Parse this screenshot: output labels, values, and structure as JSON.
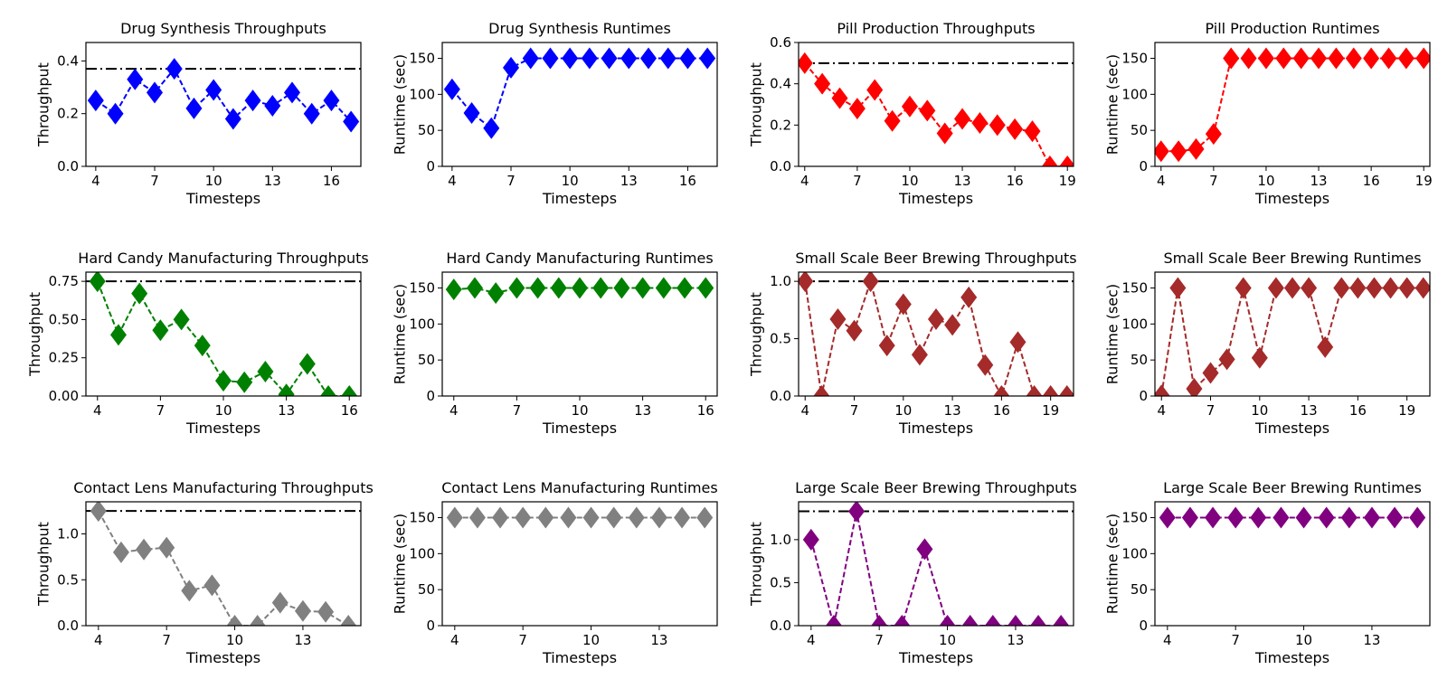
{
  "chart_data": [
    {
      "type": "line",
      "title": "Drug Synthesis Throughputs",
      "xlabel": "Timesteps",
      "ylabel": "Throughput",
      "color": "#0000ff",
      "x": [
        4,
        5,
        6,
        7,
        8,
        9,
        10,
        11,
        12,
        13,
        14,
        15,
        16,
        17
      ],
      "values": [
        0.25,
        0.2,
        0.33,
        0.28,
        0.37,
        0.22,
        0.29,
        0.18,
        0.25,
        0.23,
        0.28,
        0.2,
        0.25,
        0.17
      ],
      "reference_line": 0.37,
      "xlim": [
        3.5,
        17.5
      ],
      "ylim": [
        0,
        0.47
      ],
      "xticks": [
        4,
        7,
        10,
        13,
        16
      ],
      "yticks": [
        0.0,
        0.2,
        0.4
      ],
      "ytick_labels": [
        "0.0",
        "0.2",
        "0.4"
      ]
    },
    {
      "type": "line",
      "title": "Drug Synthesis Runtimes",
      "xlabel": "Timesteps",
      "ylabel": "Runtime (sec)",
      "color": "#0000ff",
      "x": [
        4,
        5,
        6,
        7,
        8,
        9,
        10,
        11,
        12,
        13,
        14,
        15,
        16,
        17
      ],
      "values": [
        107,
        74,
        53,
        137,
        150,
        150,
        150,
        150,
        150,
        150,
        150,
        150,
        150,
        150
      ],
      "xlim": [
        3.5,
        17.5
      ],
      "ylim": [
        0,
        172
      ],
      "xticks": [
        4,
        7,
        10,
        13,
        16
      ],
      "yticks": [
        0,
        50,
        100,
        150
      ],
      "ytick_labels": [
        "0",
        "50",
        "100",
        "150"
      ]
    },
    {
      "type": "line",
      "title": "Pill Production Throughputs",
      "xlabel": "Timesteps",
      "ylabel": "Throughput",
      "color": "#ff0000",
      "x": [
        4,
        5,
        6,
        7,
        8,
        9,
        10,
        11,
        12,
        13,
        14,
        15,
        16,
        17,
        18,
        19
      ],
      "values": [
        0.5,
        0.4,
        0.33,
        0.28,
        0.37,
        0.22,
        0.29,
        0.27,
        0.16,
        0.23,
        0.21,
        0.2,
        0.18,
        0.17,
        0.0,
        0.0
      ],
      "reference_line": 0.5,
      "xlim": [
        3.65,
        19.35
      ],
      "ylim": [
        0,
        0.6
      ],
      "xticks": [
        4,
        7,
        10,
        13,
        16,
        19
      ],
      "yticks": [
        0.0,
        0.2,
        0.4,
        0.6
      ],
      "ytick_labels": [
        "0.0",
        "0.2",
        "0.4",
        "0.6"
      ]
    },
    {
      "type": "line",
      "title": "Pill Production Runtimes",
      "xlabel": "Timesteps",
      "ylabel": "Runtime (sec)",
      "color": "#ff0000",
      "x": [
        4,
        5,
        6,
        7,
        8,
        9,
        10,
        11,
        12,
        13,
        14,
        15,
        16,
        17,
        18,
        19
      ],
      "values": [
        21,
        21,
        24,
        45,
        150,
        150,
        150,
        150,
        150,
        150,
        150,
        150,
        150,
        150,
        150,
        150
      ],
      "xlim": [
        3.65,
        19.35
      ],
      "ylim": [
        0,
        172
      ],
      "xticks": [
        4,
        7,
        10,
        13,
        16,
        19
      ],
      "yticks": [
        0,
        50,
        100,
        150
      ],
      "ytick_labels": [
        "0",
        "50",
        "100",
        "150"
      ]
    },
    {
      "type": "line",
      "title": "Hard Candy Manufacturing Throughputs",
      "xlabel": "Timesteps",
      "ylabel": "Throughput",
      "color": "#008000",
      "x": [
        4,
        5,
        6,
        7,
        8,
        9,
        10,
        11,
        12,
        13,
        14,
        15,
        16
      ],
      "values": [
        0.75,
        0.4,
        0.67,
        0.43,
        0.5,
        0.33,
        0.1,
        0.09,
        0.16,
        0.01,
        0.21,
        0.0,
        0.0
      ],
      "reference_line": 0.75,
      "xlim": [
        3.45,
        16.55
      ],
      "ylim": [
        0,
        0.81
      ],
      "xticks": [
        4,
        7,
        10,
        13,
        16
      ],
      "yticks": [
        0.0,
        0.25,
        0.5,
        0.75
      ],
      "ytick_labels": [
        "0.00",
        "0.25",
        "0.50",
        "0.75"
      ]
    },
    {
      "type": "line",
      "title": "Hard Candy Manufacturing Runtimes",
      "xlabel": "Timesteps",
      "ylabel": "Runtime (sec)",
      "color": "#008000",
      "x": [
        4,
        5,
        6,
        7,
        8,
        9,
        10,
        11,
        12,
        13,
        14,
        15,
        16
      ],
      "values": [
        148,
        150,
        143,
        150,
        150,
        150,
        150,
        150,
        150,
        150,
        150,
        150,
        150
      ],
      "xlim": [
        3.45,
        16.55
      ],
      "ylim": [
        0,
        172
      ],
      "xticks": [
        4,
        7,
        10,
        13,
        16
      ],
      "yticks": [
        0,
        50,
        100,
        150
      ],
      "ytick_labels": [
        "0",
        "50",
        "100",
        "150"
      ]
    },
    {
      "type": "line",
      "title": "Small Scale Beer Brewing Throughputs",
      "xlabel": "Timesteps",
      "ylabel": "Throughput",
      "color": "#a52a2a",
      "x": [
        4,
        5,
        6,
        7,
        8,
        9,
        10,
        11,
        12,
        13,
        14,
        15,
        16,
        17,
        18,
        19,
        20
      ],
      "values": [
        1.0,
        0.0,
        0.67,
        0.57,
        1.0,
        0.44,
        0.8,
        0.36,
        0.67,
        0.62,
        0.86,
        0.27,
        0.0,
        0.47,
        0.0,
        0.0,
        0.0
      ],
      "reference_line": 1.0,
      "xlim": [
        3.6,
        20.4
      ],
      "ylim": [
        0,
        1.08
      ],
      "xticks": [
        4,
        7,
        10,
        13,
        16,
        19
      ],
      "yticks": [
        0.0,
        0.5,
        1.0
      ],
      "ytick_labels": [
        "0.0",
        "0.5",
        "1.0"
      ]
    },
    {
      "type": "line",
      "title": "Small Scale Beer Brewing Runtimes",
      "xlabel": "Timesteps",
      "ylabel": "Runtime (sec)",
      "color": "#a52a2a",
      "x": [
        4,
        5,
        6,
        7,
        8,
        9,
        10,
        11,
        12,
        13,
        14,
        15,
        16,
        17,
        18,
        19,
        20
      ],
      "values": [
        1,
        150,
        10,
        32,
        51,
        150,
        53,
        150,
        150,
        150,
        68,
        150,
        150,
        150,
        150,
        150,
        150
      ],
      "xlim": [
        3.6,
        20.4
      ],
      "ylim": [
        0,
        172
      ],
      "xticks": [
        4,
        7,
        10,
        13,
        16,
        19
      ],
      "yticks": [
        0,
        50,
        100,
        150
      ],
      "ytick_labels": [
        "0",
        "50",
        "100",
        "150"
      ]
    },
    {
      "type": "line",
      "title": "Contact Lens Manufacturing Throughputs",
      "xlabel": "Timesteps",
      "ylabel": "Throughput",
      "color": "#808080",
      "x": [
        4,
        5,
        6,
        7,
        8,
        9,
        10,
        11,
        12,
        13,
        14,
        15
      ],
      "values": [
        1.25,
        0.8,
        0.83,
        0.85,
        0.38,
        0.44,
        0.0,
        0.0,
        0.25,
        0.16,
        0.15,
        0.0
      ],
      "reference_line": 1.25,
      "xlim": [
        3.45,
        15.55
      ],
      "ylim": [
        0,
        1.35
      ],
      "xticks": [
        4,
        7,
        10,
        13
      ],
      "yticks": [
        0.0,
        0.5,
        1.0
      ],
      "ytick_labels": [
        "0.0",
        "0.5",
        "1.0"
      ]
    },
    {
      "type": "line",
      "title": "Contact Lens Manufacturing Runtimes",
      "xlabel": "Timesteps",
      "ylabel": "Runtime (sec)",
      "color": "#808080",
      "x": [
        4,
        5,
        6,
        7,
        8,
        9,
        10,
        11,
        12,
        13,
        14,
        15
      ],
      "values": [
        150,
        150,
        150,
        150,
        150,
        150,
        150,
        150,
        150,
        150,
        150,
        150
      ],
      "xlim": [
        3.45,
        15.55
      ],
      "ylim": [
        0,
        172
      ],
      "xticks": [
        4,
        7,
        10,
        13
      ],
      "yticks": [
        0,
        50,
        100,
        150
      ],
      "ytick_labels": [
        "0",
        "50",
        "100",
        "150"
      ]
    },
    {
      "type": "line",
      "title": "Large Scale Beer Brewing Throughputs",
      "xlabel": "Timesteps",
      "ylabel": "Throughput",
      "color": "#800080",
      "x": [
        4,
        5,
        6,
        7,
        8,
        9,
        10,
        11,
        12,
        13,
        14,
        15
      ],
      "values": [
        1.0,
        0.0,
        1.33,
        0.0,
        0.0,
        0.89,
        0.0,
        0.0,
        0.0,
        0.0,
        0.0,
        0.0
      ],
      "reference_line": 1.33,
      "xlim": [
        3.45,
        15.55
      ],
      "ylim": [
        0,
        1.44
      ],
      "xticks": [
        4,
        7,
        10,
        13
      ],
      "yticks": [
        0.0,
        0.5,
        1.0
      ],
      "ytick_labels": [
        "0.0",
        "0.5",
        "1.0"
      ]
    },
    {
      "type": "line",
      "title": "Large Scale Beer Brewing Runtimes",
      "xlabel": "Timesteps",
      "ylabel": "Runtime (sec)",
      "color": "#800080",
      "x": [
        4,
        5,
        6,
        7,
        8,
        9,
        10,
        11,
        12,
        13,
        14,
        15
      ],
      "values": [
        150,
        150,
        150,
        150,
        150,
        150,
        150,
        150,
        150,
        150,
        150,
        150
      ],
      "xlim": [
        3.45,
        15.55
      ],
      "ylim": [
        0,
        172
      ],
      "xticks": [
        4,
        7,
        10,
        13
      ],
      "yticks": [
        0,
        50,
        100,
        150
      ],
      "ytick_labels": [
        "0",
        "50",
        "100",
        "150"
      ]
    }
  ]
}
